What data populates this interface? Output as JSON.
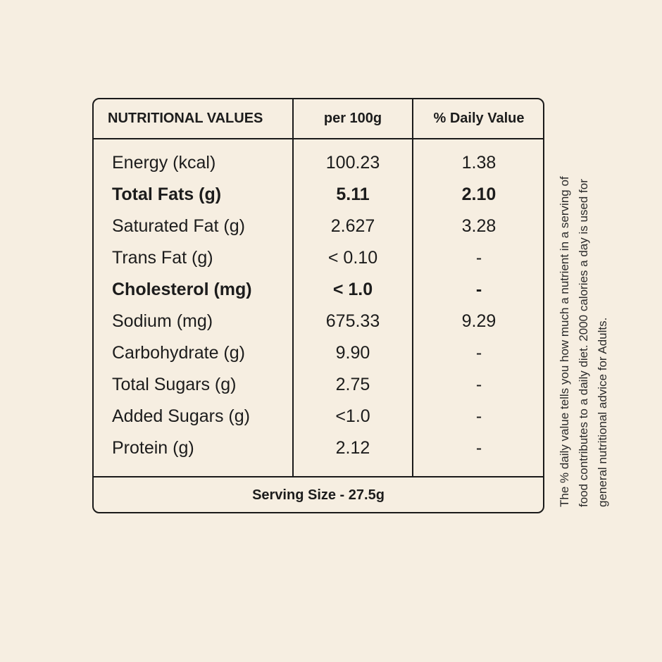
{
  "table": {
    "headers": {
      "nutrient": "NUTRITIONAL VALUES",
      "per": "per 100g",
      "daily": "% Daily Value"
    },
    "rows": [
      {
        "name": "Energy (kcal)",
        "per": "100.23",
        "daily": "1.38"
      },
      {
        "name": "Total Fats (g)",
        "per": "5.11",
        "daily": "2.10"
      },
      {
        "name": "Saturated Fat (g)",
        "per": "2.627",
        "daily": "3.28"
      },
      {
        "name": "Trans Fat (g)",
        "per": "< 0.10",
        "daily": "-"
      },
      {
        "name": "Cholesterol (mg)",
        "per": "< 1.0",
        "daily": "-"
      },
      {
        "name": "Sodium (mg)",
        "per": "675.33",
        "daily": "9.29"
      },
      {
        "name": "Carbohydrate (g)",
        "per": "9.90",
        "daily": "-"
      },
      {
        "name": "Total Sugars (g)",
        "per": "2.75",
        "daily": "-"
      },
      {
        "name": "Added Sugars (g)",
        "per": "<1.0",
        "daily": "-"
      },
      {
        "name": "Protein (g)",
        "per": "2.12",
        "daily": "-"
      }
    ],
    "serving_size": "Serving Size - 27.5g"
  },
  "note": {
    "line1": "The % daily value tells you how much a nutrient in a serving of",
    "line2": "food contributes to a daily diet. 2000 calories a day is used for",
    "line3": "general nutritional advice for Adults."
  }
}
